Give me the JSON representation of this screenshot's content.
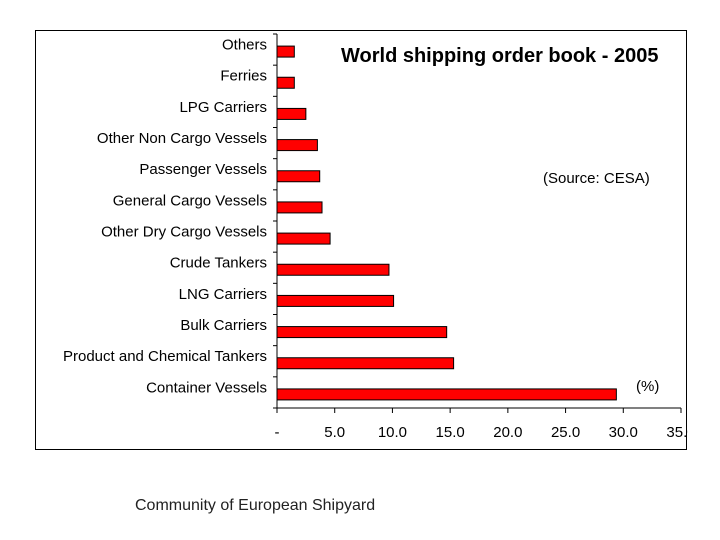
{
  "chart_data": {
    "type": "bar",
    "orientation": "horizontal",
    "title": "World shipping order book - 2005",
    "source_note": "(Source: CESA)",
    "unit_note": "(%)",
    "categories": [
      "Others",
      "Ferries",
      "LPG Carriers",
      "Other Non Cargo Vessels",
      "Passenger Vessels",
      "General Cargo Vessels",
      "Other Dry Cargo Vessels",
      "Crude Tankers",
      "LNG Carriers",
      "Bulk Carriers",
      "Product and Chemical Tankers",
      "Container Vessels"
    ],
    "values": [
      1.5,
      1.5,
      2.5,
      3.5,
      3.7,
      3.9,
      4.6,
      9.7,
      10.1,
      14.7,
      15.3,
      29.4
    ],
    "xlim": [
      0,
      35
    ],
    "x_ticks": [
      "-",
      "5.0",
      "10.0",
      "15.0",
      "20.0",
      "25.0",
      "30.0",
      "35.0"
    ],
    "bar_color": "#ff0000",
    "grid": false,
    "legend": "none"
  },
  "caption": "Community of European Shipyard"
}
